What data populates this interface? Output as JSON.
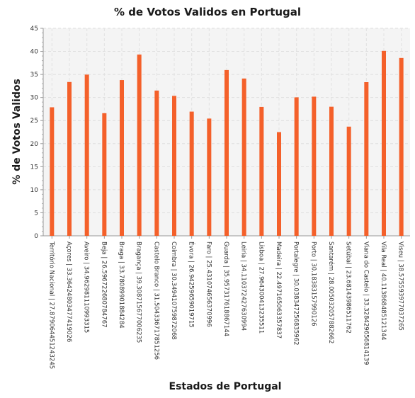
{
  "chart_data": {
    "type": "bar",
    "title": "% de Votos Validos en Portugal",
    "xlabel": "Estados de Portugal",
    "ylabel": "% de Votos Validos",
    "ylim": [
      0,
      45
    ],
    "yticks": [
      0,
      5,
      10,
      15,
      20,
      25,
      30,
      35,
      40,
      45
    ],
    "grid": true,
    "bar_color": "#f4602a",
    "categories": [
      "Território Nacional | 27.879064451243245",
      "Açores | 33.36424803477419026",
      "Aveiro | 34.962981110993315",
      "Beja | 26.596722680784767",
      "Braga | 33.78089901884284",
      "Bragança | 39.308715677006235",
      "Castelo Branco | 31.504336717851256",
      "Coimbra | 30.349410759872068",
      "Évora | 26.94259659019715",
      "Faro | 25.431074656370996",
      "Guarda | 35.957317618867144",
      "Leiria | 34.110372427630994",
      "Lisboa | 27.964300413235511",
      "Madeira | 22.497165063357837",
      "Portalegre | 30.038347256835962",
      "Porto | 30.18383157990126",
      "Santarém | 28.005032057882662",
      "Setúbal | 23.68143986511762",
      "Viana do Castelo | 33.328429656814139",
      "Vila Real | 40.113868485121344",
      "Viseu | 38.575593977037265"
    ],
    "values": [
      27.879064451243245,
      33.36424803477419,
      34.96298111099331,
      26.59672268078477,
      33.78089901884284,
      39.308715677006234,
      31.504336717851256,
      30.349410759872068,
      26.94259659019715,
      25.431074656370996,
      35.957317618867144,
      34.11037242763099,
      27.96430041323551,
      22.497165063357837,
      30.038347256835962,
      30.18383157990126,
      28.005032057882662,
      23.68143986511762,
      33.32842965681414,
      40.113868485121344,
      38.575593977037265
    ]
  }
}
